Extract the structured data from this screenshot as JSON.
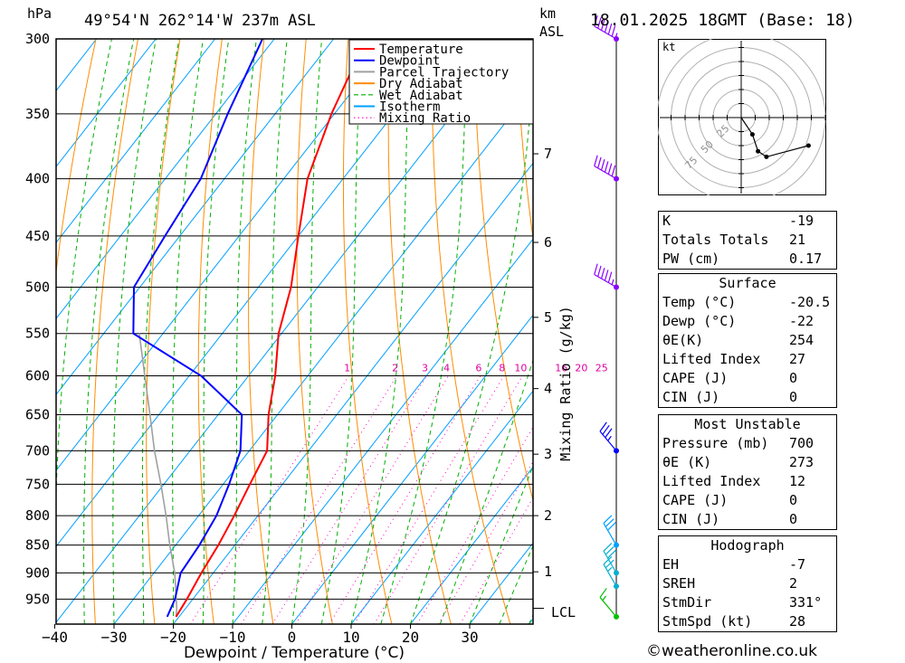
{
  "header": {
    "unit_left": "hPa",
    "location": "49°54'N  262°14'W  237m  ASL",
    "km_label": "km",
    "asl_label": "ASL",
    "datetime": "18.01.2025  18GMT  (Base: 18)"
  },
  "chart_data": {
    "type": "line",
    "title": "",
    "xlabel": "Dewpoint / Temperature (°C)",
    "ylabel": "hPa",
    "xlim": [
      -40,
      40
    ],
    "ylim": [
      300,
      1000
    ],
    "log_pressure_axis": true,
    "skew": true,
    "x_ticks": [
      "-40",
      "-30",
      "-20",
      "-10",
      "0",
      "10",
      "20",
      "30"
    ],
    "pressure_ticks": [
      "300",
      "350",
      "400",
      "450",
      "500",
      "550",
      "600",
      "650",
      "700",
      "750",
      "800",
      "850",
      "900",
      "950"
    ],
    "km_ticks": [
      {
        "km": "7",
        "p": 380
      },
      {
        "km": "6",
        "p": 456
      },
      {
        "km": "5",
        "p": 532
      },
      {
        "km": "4",
        "p": 616
      },
      {
        "km": "3",
        "p": 705
      },
      {
        "km": "2",
        "p": 800
      },
      {
        "km": "1",
        "p": 898
      }
    ],
    "lcl_label": "LCL",
    "lcl_pressure": 968,
    "mixing_ratio_label": "Mixing Ratio (g/kg)",
    "mixing_ratio_values": [
      "1",
      "2",
      "3",
      "4",
      "6",
      "8",
      "10",
      "16",
      "20",
      "25"
    ],
    "grid": true,
    "legend": {
      "placement": "top-center",
      "entries": [
        {
          "label": "Temperature",
          "color": "#ff0000",
          "style": "solid"
        },
        {
          "label": "Dewpoint",
          "color": "#0000ff",
          "style": "solid"
        },
        {
          "label": "Parcel Trajectory",
          "color": "#a0a0a0",
          "style": "solid"
        },
        {
          "label": "Dry Adiabat",
          "color": "#ff8c00",
          "style": "solid"
        },
        {
          "label": "Wet Adiabat",
          "color": "#00b000",
          "style": "dashed"
        },
        {
          "label": "Isotherm",
          "color": "#00a0ff",
          "style": "solid"
        },
        {
          "label": "Mixing Ratio",
          "color": "#ff00c0",
          "style": "dotted"
        }
      ]
    },
    "series": [
      {
        "name": "Temperature",
        "color": "#ff0000",
        "points": [
          [
            985,
            -20.5
          ],
          [
            950,
            -21.0
          ],
          [
            900,
            -22.0
          ],
          [
            850,
            -22.8
          ],
          [
            800,
            -24.0
          ],
          [
            750,
            -25.5
          ],
          [
            700,
            -27.0
          ],
          [
            650,
            -31.5
          ],
          [
            600,
            -35.5
          ],
          [
            550,
            -40.5
          ],
          [
            500,
            -44.5
          ],
          [
            450,
            -50.0
          ],
          [
            400,
            -56.0
          ],
          [
            350,
            -60.5
          ],
          [
            300,
            -64.5
          ]
        ]
      },
      {
        "name": "Dewpoint",
        "color": "#0000ff",
        "points": [
          [
            985,
            -22.0
          ],
          [
            950,
            -23.0
          ],
          [
            900,
            -25.5
          ],
          [
            850,
            -26.0
          ],
          [
            800,
            -27.0
          ],
          [
            750,
            -29.0
          ],
          [
            700,
            -31.5
          ],
          [
            650,
            -36.0
          ],
          [
            600,
            -48.0
          ],
          [
            550,
            -65.0
          ],
          [
            500,
            -71.0
          ],
          [
            450,
            -72.5
          ],
          [
            400,
            -74.0
          ],
          [
            350,
            -78.0
          ],
          [
            300,
            -82.0
          ]
        ]
      },
      {
        "name": "Parcel Trajectory",
        "color": "#a0a0a0",
        "points": [
          [
            985,
            -20.5
          ],
          [
            968,
            -21.5
          ],
          [
            900,
            -26.5
          ],
          [
            850,
            -31.0
          ],
          [
            800,
            -35.5
          ],
          [
            750,
            -40.5
          ],
          [
            700,
            -46.0
          ],
          [
            650,
            -51.5
          ],
          [
            600,
            -57.5
          ],
          [
            550,
            -64.0
          ]
        ]
      }
    ],
    "wind_barbs": [
      {
        "p": 300,
        "speed_kt": 65,
        "dir_deg": 300,
        "color": "#8a00ff"
      },
      {
        "p": 400,
        "speed_kt": 60,
        "dir_deg": 300,
        "color": "#8a00ff"
      },
      {
        "p": 500,
        "speed_kt": 55,
        "dir_deg": 300,
        "color": "#8a00ff"
      },
      {
        "p": 700,
        "speed_kt": 35,
        "dir_deg": 320,
        "color": "#0000ff"
      },
      {
        "p": 850,
        "speed_kt": 30,
        "dir_deg": 330,
        "color": "#00a0ff"
      },
      {
        "p": 900,
        "speed_kt": 30,
        "dir_deg": 330,
        "color": "#00b0d0"
      },
      {
        "p": 925,
        "speed_kt": 25,
        "dir_deg": 330,
        "color": "#00b0d0"
      },
      {
        "p": 985,
        "speed_kt": 15,
        "dir_deg": 320,
        "color": "#00c000"
      }
    ]
  },
  "hodograph": {
    "unit": "kt",
    "ring_labels": [
      "25",
      "50",
      "75"
    ],
    "points_kt": [
      [
        0,
        0
      ],
      [
        8,
        -12
      ],
      [
        12,
        -24
      ],
      [
        18,
        -28
      ],
      [
        48,
        -20
      ]
    ]
  },
  "indices": [
    {
      "label": "K",
      "value": "-19"
    },
    {
      "label": "Totals Totals",
      "value": "21"
    },
    {
      "label": "PW (cm)",
      "value": "0.17"
    }
  ],
  "surface": {
    "title": "Surface",
    "rows": [
      {
        "label": "Temp (°C)",
        "value": "-20.5"
      },
      {
        "label": "Dewp (°C)",
        "value": "-22"
      },
      {
        "label": "θE(K)",
        "value": "254"
      },
      {
        "label": "Lifted Index",
        "value": "27"
      },
      {
        "label": "CAPE (J)",
        "value": "0"
      },
      {
        "label": "CIN (J)",
        "value": "0"
      }
    ]
  },
  "most_unstable": {
    "title": "Most Unstable",
    "rows": [
      {
        "label": "Pressure (mb)",
        "value": "700"
      },
      {
        "label": "θE (K)",
        "value": "273"
      },
      {
        "label": "Lifted Index",
        "value": "12"
      },
      {
        "label": "CAPE (J)",
        "value": "0"
      },
      {
        "label": "CIN (J)",
        "value": "0"
      }
    ]
  },
  "hodograph_table": {
    "title": "Hodograph",
    "rows": [
      {
        "label": "EH",
        "value": "-7"
      },
      {
        "label": "SREH",
        "value": "2"
      },
      {
        "label": "StmDir",
        "value": "331°"
      },
      {
        "label": "StmSpd (kt)",
        "value": "28"
      }
    ]
  },
  "footer": {
    "copyright_symbol": "©",
    "site": "weatheronline.co.uk"
  }
}
